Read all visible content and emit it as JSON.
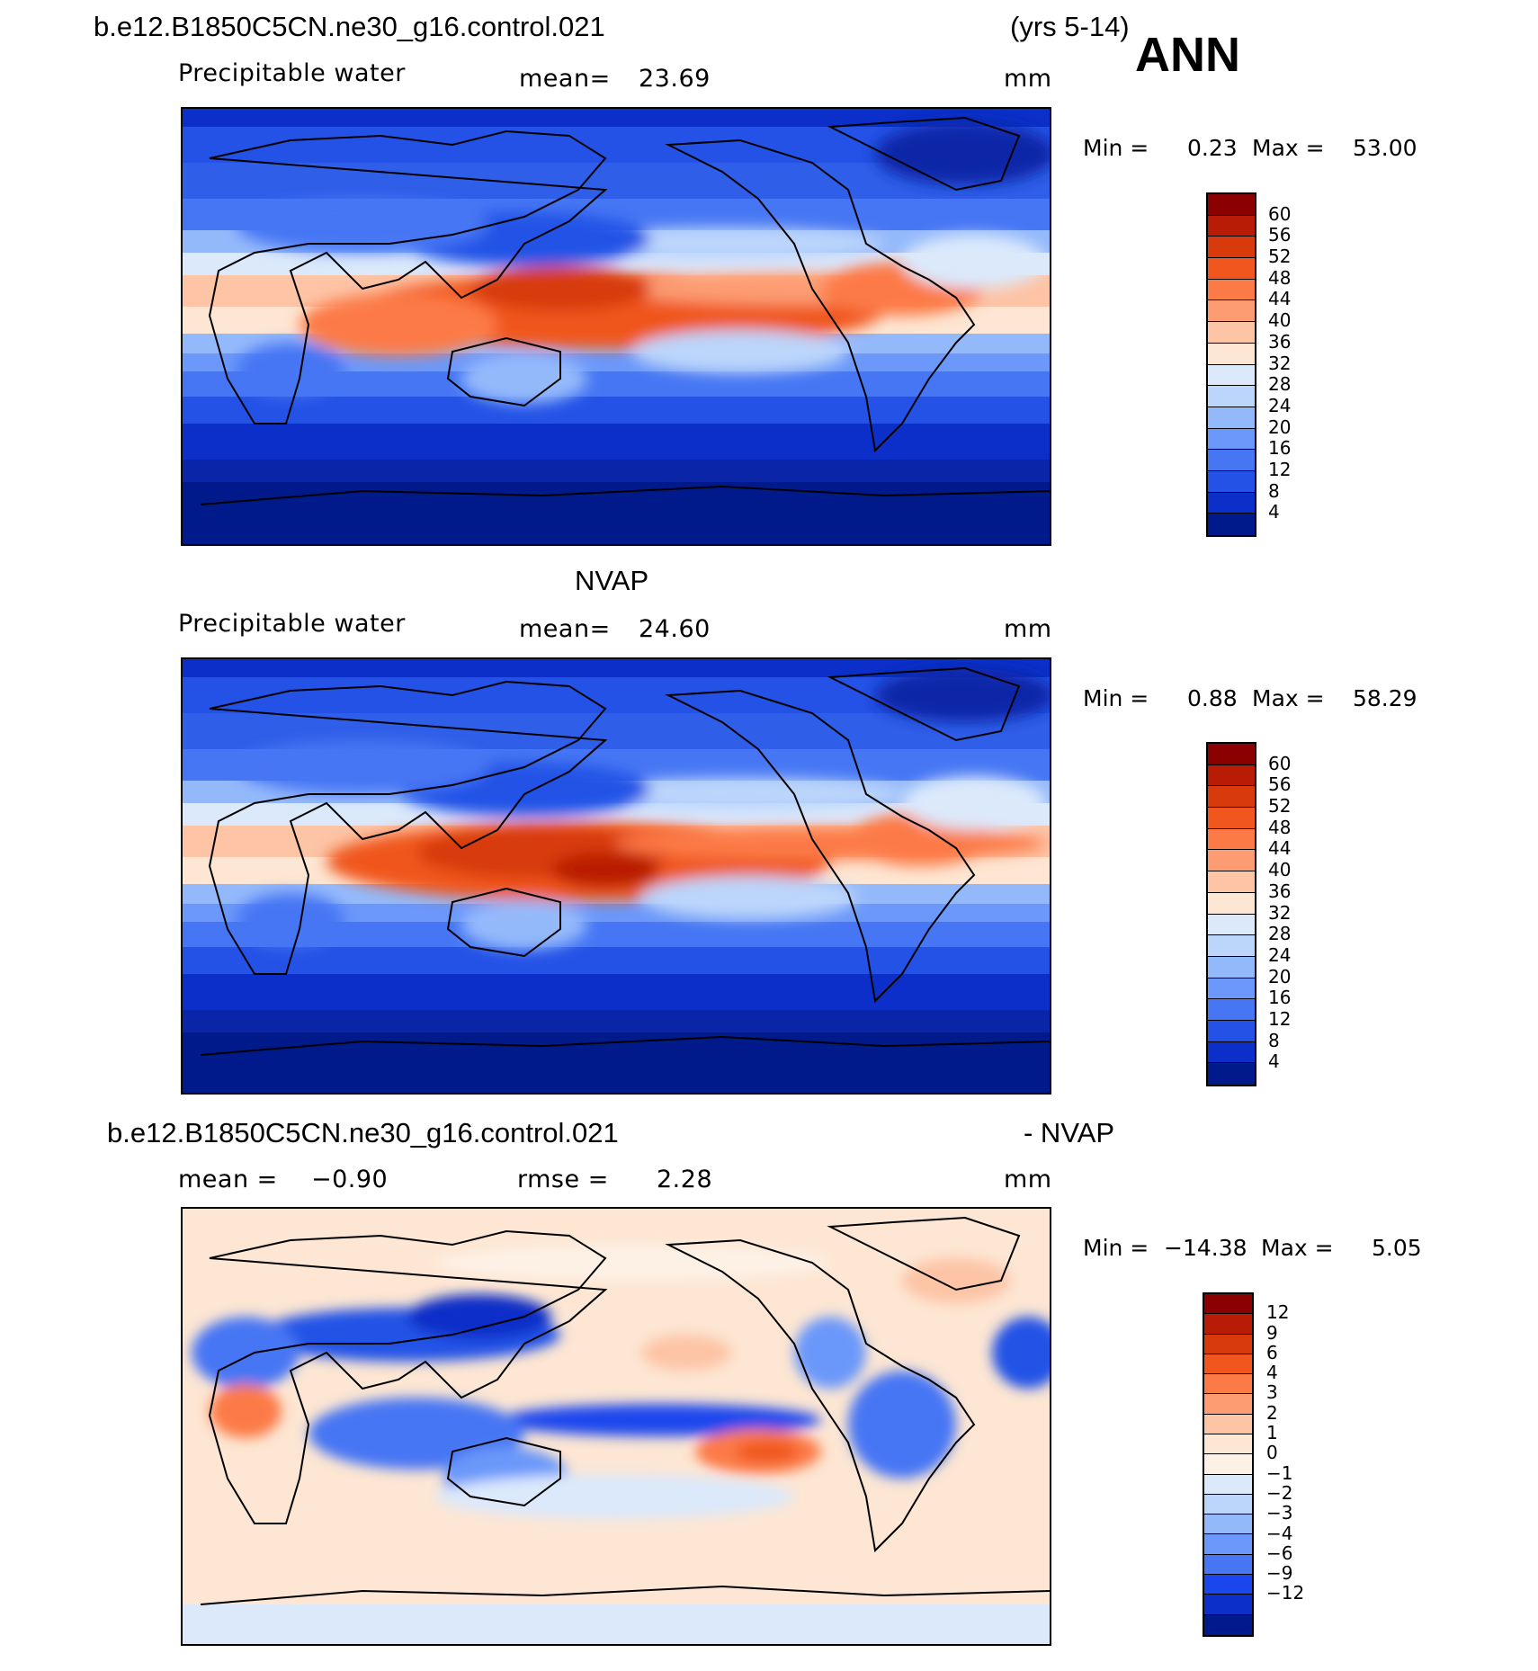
{
  "header": {
    "case_title": "b.e12.B1850C5CN.ne30_g16.control.021",
    "years": "(yrs 5-14)",
    "season": "ANN"
  },
  "panels": [
    {
      "variable": "Precipitable water",
      "mean_label": "mean=",
      "mean_value": "23.69",
      "units": "mm",
      "min_label": "Min =",
      "min_value": "0.23",
      "max_label": "Max =",
      "max_value": "53.00",
      "levels": [
        "60",
        "56",
        "52",
        "48",
        "44",
        "40",
        "36",
        "32",
        "28",
        "24",
        "20",
        "16",
        "12",
        "8",
        "4"
      ]
    },
    {
      "title": "NVAP",
      "variable": "Precipitable water",
      "mean_label": "mean=",
      "mean_value": "24.60",
      "units": "mm",
      "min_label": "Min =",
      "min_value": "0.88",
      "max_label": "Max =",
      "max_value": "58.29",
      "levels": [
        "60",
        "56",
        "52",
        "48",
        "44",
        "40",
        "36",
        "32",
        "28",
        "24",
        "20",
        "16",
        "12",
        "8",
        "4"
      ]
    },
    {
      "title_left": "b.e12.B1850C5CN.ne30_g16.control.021",
      "title_right": "- NVAP",
      "mean_label": "mean =",
      "mean_value": "−0.90",
      "rmse_label": "rmse =",
      "rmse_value": "2.28",
      "units": "mm",
      "min_label": "Min =",
      "min_value": "−14.38",
      "max_label": "Max =",
      "max_value": "5.05",
      "levels": [
        "12",
        "9",
        "6",
        "4",
        "3",
        "2",
        "1",
        "0",
        "−1",
        "−2",
        "−3",
        "−4",
        "−6",
        "−9",
        "−12"
      ]
    }
  ],
  "colors": {
    "abs_scale": [
      "#8b0000",
      "#b81c06",
      "#d83a0c",
      "#f0561e",
      "#fc7a46",
      "#fd9c72",
      "#fdc4a6",
      "#fde6d3",
      "#dbe9fb",
      "#bcd5fb",
      "#94b9fb",
      "#6b98fa",
      "#4676f4",
      "#2452e6",
      "#0b2fc8",
      "#001a8c"
    ],
    "diff_scale": [
      "#8b0000",
      "#b81c06",
      "#d83a0c",
      "#f0561e",
      "#fc7a46",
      "#fd9c72",
      "#fdc4a6",
      "#fde6d3",
      "#fdf1e6",
      "#dbe9fb",
      "#bcd5fb",
      "#94b9fb",
      "#6b98fa",
      "#4676f4",
      "#1a46ee",
      "#0b2fc8",
      "#001a8c"
    ]
  }
}
